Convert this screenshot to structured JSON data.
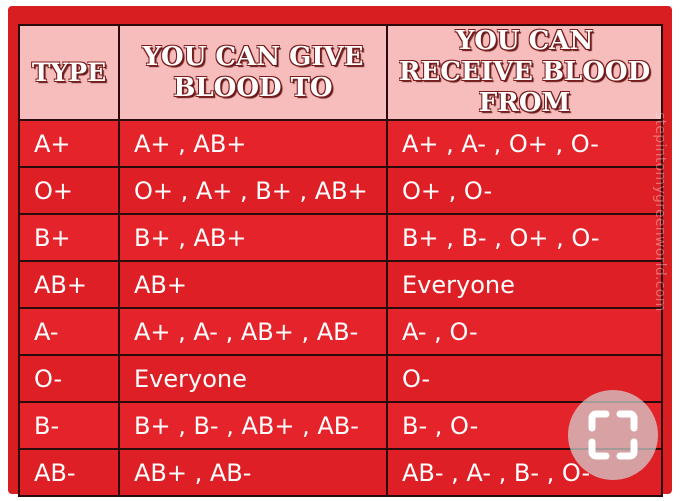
{
  "table": {
    "headers": {
      "type": "TYPE",
      "give": "YOU CAN GIVE BLOOD TO",
      "receive": "YOU CAN RECEIVE BLOOD FROM"
    },
    "rows": [
      {
        "type": "A+",
        "give": "A+ , AB+",
        "receive": "A+ , A- , O+ , O-"
      },
      {
        "type": "O+",
        "give": "O+ , A+ , B+ , AB+",
        "receive": "O+ , O-"
      },
      {
        "type": "B+",
        "give": "B+ , AB+",
        "receive": "B+ , B- , O+ , O-"
      },
      {
        "type": "AB+",
        "give": "AB+",
        "receive": "Everyone"
      },
      {
        "type": "A-",
        "give": "A+ , A- , AB+ , AB-",
        "receive": "A- , O-"
      },
      {
        "type": "O-",
        "give": "Everyone",
        "receive": "O-"
      },
      {
        "type": "B-",
        "give": "B+ , B- , AB+ , AB-",
        "receive": "B- , O-"
      },
      {
        "type": "AB-",
        "give": "AB+ , AB-",
        "receive": "AB- , A- , B- , O-"
      }
    ]
  },
  "watermark": "stepintomygreenworld.com",
  "colors": {
    "table_red": "#e4232a",
    "header_pink": "#f7bcbc",
    "header_text_outline": "#7a1c1c",
    "border": "#2a0a0a"
  },
  "icons": {
    "save_badge": "expand-corners-icon"
  }
}
